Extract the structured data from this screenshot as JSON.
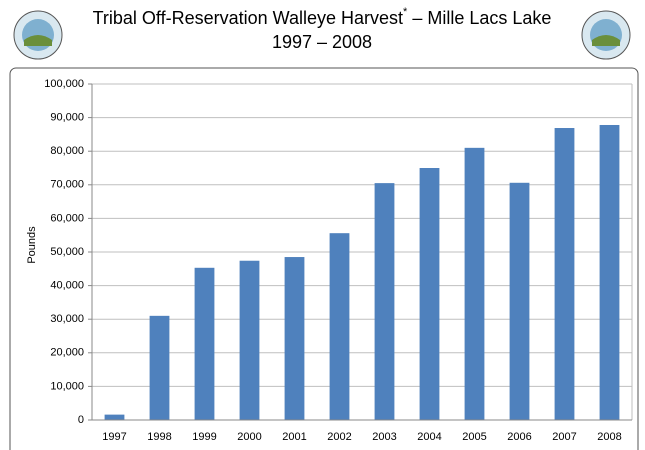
{
  "chart_data": {
    "type": "bar",
    "title_parts": [
      "Tribal Off-Reservation Walleye Harvest",
      "*",
      " – Mille Lacs Lake"
    ],
    "subtitle": "1997 – 2008",
    "y_label": "Pounds",
    "categories": [
      "1997",
      "1998",
      "1999",
      "2000",
      "2001",
      "2002",
      "2003",
      "2004",
      "2005",
      "2006",
      "2007",
      "2008"
    ],
    "values": [
      1600,
      31000,
      45300,
      47400,
      48500,
      55600,
      70500,
      75000,
      81000,
      70600,
      86900,
      87800
    ],
    "color": "#4f81bd",
    "ylim": [
      0,
      100000
    ],
    "yticks": [
      0,
      {
        "value": 10000,
        "label": "10,000"
      },
      {
        "value": 20000,
        "label": "20,000"
      },
      {
        "value": 30000,
        "label": "30,000"
      },
      {
        "value": 40000,
        "label": "40,000"
      },
      {
        "value": 50000,
        "label": "50,000"
      },
      {
        "value": 60000,
        "label": "60,000"
      },
      {
        "value": 70000,
        "label": "70,000"
      },
      {
        "value": 80000,
        "label": "80,000"
      },
      {
        "value": 90000,
        "label": "90,000"
      },
      {
        "value": 100000,
        "label": "100,000"
      }
    ],
    "grid": true
  }
}
